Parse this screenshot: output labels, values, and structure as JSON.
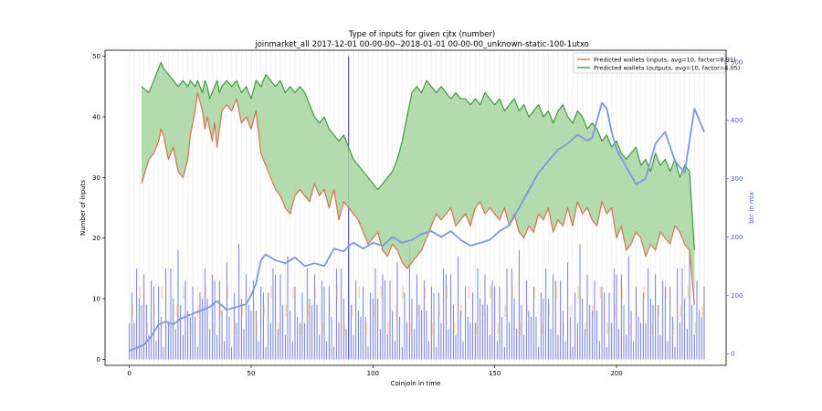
{
  "chart_data": {
    "type": "line",
    "title": "Type of inputs for given cjtx (number)",
    "subtitle": "joinmarket_all 2017-12-01 00-00-00--2018-01-01 00-00-00_unknown-static-100-1utxo",
    "xlabel": "Coinjoin in time",
    "ylabel": "Number of inputs",
    "y2label": "btc in mix",
    "xlim": [
      -10,
      245
    ],
    "ylim": [
      -1,
      51
    ],
    "y2lim": [
      -20,
      520
    ],
    "xticks": [
      "0",
      "50",
      "100",
      "150",
      "200"
    ],
    "yticks": [
      "0",
      "10",
      "20",
      "30",
      "40",
      "50"
    ],
    "y2ticks": [
      "0",
      "100",
      "200",
      "300",
      "400",
      "500"
    ],
    "grid": "vertical lines at coinjoin positions",
    "legend_position": "top-right",
    "colors": {
      "inputs_line": "#d9704a",
      "outputs_line": "#3d9b3d",
      "fill_between": "#a6d5a0",
      "bars": "#4a55d9",
      "btc_line": "#7b96e6",
      "minor_bars": "#f4c36a"
    },
    "series": [
      {
        "name": "Predicted wallets (inputs, avg=10, factor=8.91)",
        "x": [
          5,
          8,
          10,
          12,
          13,
          14,
          16,
          18,
          20,
          22,
          24,
          25,
          27,
          28,
          30,
          31,
          32,
          33,
          34,
          35,
          36,
          37,
          38,
          40,
          42,
          44,
          46,
          48,
          50,
          52,
          54,
          56,
          58,
          60,
          62,
          64,
          66,
          68,
          70,
          72,
          74,
          76,
          78,
          80,
          82,
          84,
          86,
          88,
          90,
          92,
          94,
          96,
          98,
          100,
          102,
          104,
          106,
          108,
          110,
          112,
          114,
          116,
          118,
          120,
          122,
          124,
          126,
          128,
          130,
          132,
          134,
          136,
          138,
          140,
          142,
          144,
          146,
          148,
          150,
          152,
          154,
          156,
          158,
          160,
          162,
          164,
          166,
          168,
          170,
          172,
          174,
          176,
          178,
          180,
          182,
          184,
          186,
          188,
          190,
          192,
          194,
          196,
          198,
          200,
          202,
          204,
          206,
          208,
          210,
          212,
          214,
          216,
          218,
          220,
          222,
          224,
          226,
          228,
          230,
          232
        ],
        "values": [
          29,
          33,
          34,
          36,
          38,
          37,
          33,
          35,
          31,
          30,
          33,
          37,
          41,
          44,
          41,
          38,
          40,
          38,
          36,
          39,
          35,
          38,
          41,
          42,
          41,
          43,
          39,
          40,
          38,
          41,
          34,
          32,
          30,
          28,
          27,
          25,
          24,
          27,
          28,
          27,
          26,
          29,
          27,
          28,
          25,
          28,
          23,
          26,
          25,
          24,
          23,
          21,
          19,
          20,
          21,
          18,
          17,
          19,
          18,
          16,
          15,
          16,
          17,
          18,
          20,
          22,
          24,
          23,
          24,
          25,
          22,
          23,
          24,
          22,
          25,
          26,
          24,
          25,
          24,
          23,
          25,
          22,
          24,
          21,
          20,
          22,
          21,
          24,
          23,
          25,
          21,
          23,
          22,
          25,
          22,
          26,
          24,
          25,
          23,
          22,
          26,
          24,
          25,
          20,
          22,
          18,
          19,
          21,
          20,
          17,
          19,
          18,
          21,
          20,
          19,
          22,
          21,
          19,
          18,
          9
        ]
      },
      {
        "name": "Predicted wallets (outputs, avg=10, factor=4.05)",
        "x": [
          5,
          8,
          10,
          12,
          13,
          14,
          16,
          18,
          20,
          22,
          24,
          25,
          27,
          28,
          30,
          31,
          32,
          33,
          34,
          35,
          36,
          37,
          38,
          40,
          42,
          44,
          46,
          48,
          50,
          52,
          54,
          56,
          58,
          60,
          62,
          64,
          66,
          68,
          70,
          72,
          74,
          76,
          78,
          80,
          82,
          84,
          86,
          88,
          90,
          92,
          94,
          96,
          98,
          100,
          102,
          104,
          106,
          108,
          110,
          112,
          114,
          116,
          118,
          120,
          122,
          124,
          126,
          128,
          130,
          132,
          134,
          136,
          138,
          140,
          142,
          144,
          146,
          148,
          150,
          152,
          154,
          156,
          158,
          160,
          162,
          164,
          166,
          168,
          170,
          172,
          174,
          176,
          178,
          180,
          182,
          184,
          186,
          188,
          190,
          192,
          194,
          196,
          198,
          200,
          202,
          204,
          206,
          208,
          210,
          212,
          214,
          216,
          218,
          220,
          222,
          224,
          226,
          228,
          230,
          232
        ],
        "values": [
          45,
          44,
          46,
          48,
          49,
          48,
          47,
          46,
          45,
          46,
          45,
          46,
          45,
          46,
          44,
          46,
          45,
          43,
          44,
          45,
          46,
          44,
          45,
          46,
          45,
          46,
          44,
          45,
          43,
          46,
          45,
          47,
          46,
          45,
          46,
          44,
          45,
          44,
          45,
          44,
          42,
          40,
          39,
          40,
          38,
          37,
          36,
          37,
          35,
          33,
          32,
          31,
          30,
          29,
          28,
          29,
          30,
          31,
          33,
          36,
          40,
          44,
          45,
          44,
          46,
          45,
          44,
          45,
          44,
          43,
          44,
          43,
          43,
          42,
          43,
          42,
          44,
          43,
          42,
          43,
          41,
          42,
          43,
          41,
          42,
          40,
          41,
          42,
          40,
          41,
          39,
          41,
          42,
          40,
          39,
          41,
          40,
          38,
          39,
          38,
          36,
          37,
          35,
          36,
          34,
          33,
          34,
          35,
          32,
          33,
          31,
          34,
          32,
          33,
          31,
          33,
          30,
          32,
          31,
          18
        ]
      },
      {
        "name": "btc in mix",
        "axis": "right",
        "x": [
          0,
          3,
          6,
          9,
          12,
          15,
          18,
          21,
          24,
          27,
          30,
          33,
          36,
          40,
          44,
          48,
          50,
          52,
          54,
          56,
          58,
          60,
          64,
          68,
          72,
          76,
          80,
          84,
          88,
          90,
          92,
          96,
          100,
          104,
          108,
          112,
          116,
          120,
          124,
          128,
          132,
          136,
          140,
          144,
          148,
          152,
          156,
          160,
          164,
          168,
          172,
          176,
          180,
          184,
          188,
          190,
          192,
          194,
          196,
          198,
          200,
          204,
          208,
          212,
          216,
          220,
          224,
          228,
          232,
          236
        ],
        "values": [
          5,
          10,
          15,
          30,
          50,
          55,
          50,
          60,
          65,
          70,
          75,
          80,
          90,
          75,
          80,
          85,
          100,
          120,
          160,
          170,
          165,
          160,
          155,
          165,
          150,
          155,
          150,
          180,
          175,
          185,
          190,
          180,
          190,
          185,
          200,
          190,
          195,
          205,
          210,
          200,
          210,
          195,
          185,
          190,
          195,
          210,
          220,
          250,
          280,
          310,
          330,
          350,
          360,
          375,
          365,
          370,
          400,
          430,
          420,
          380,
          350,
          320,
          290,
          300,
          360,
          380,
          330,
          310,
          420,
          380
        ]
      }
    ]
  },
  "legend": {
    "inputs_label": "Predicted wallets (inputs, avg=10, factor=8.91)",
    "outputs_label": "Predicted wallets (outputs, avg=10, factor=4.05)"
  }
}
